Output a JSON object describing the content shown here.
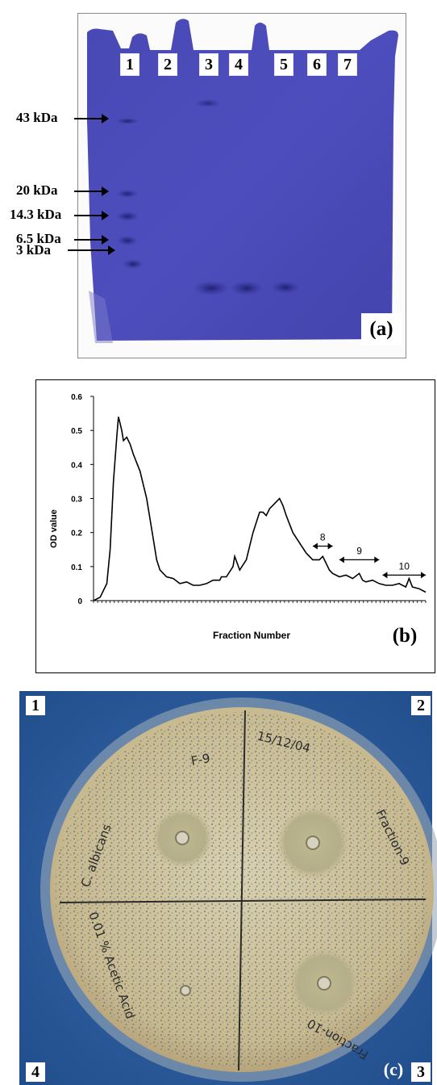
{
  "panel_a": {
    "letter": "(a)",
    "lanes": [
      "1",
      "2",
      "3",
      "4",
      "5",
      "6",
      "7"
    ],
    "markers": [
      "43 kDa",
      "20 kDa",
      "14.3 kDa",
      "6.5 kDa",
      "3 kDa"
    ],
    "colors": {
      "gel": "#4a4ab8",
      "gel_dark": "#2a2a8a",
      "band": "#1e1e6e"
    }
  },
  "panel_b": {
    "letter": "(b)",
    "annotations": [
      "8",
      "9",
      "10"
    ]
  },
  "chart_data": {
    "type": "line",
    "title": "",
    "xlabel": "Fraction Number",
    "ylabel": "OD value",
    "yticks": [
      "0",
      "0.1",
      "0.2",
      "0.3",
      "0.4",
      "0.5",
      "0.6"
    ],
    "ylim": [
      0,
      0.6
    ],
    "xlim": [
      0,
      100
    ],
    "grid": false,
    "series": [
      {
        "x": [
          0,
          2,
          4,
          5,
          6,
          7,
          7.5,
          8,
          8.5,
          9,
          10,
          11,
          12,
          14,
          16,
          18,
          19,
          20,
          21,
          22,
          24,
          26,
          28,
          30,
          32,
          34,
          36,
          38,
          38.5,
          40,
          42,
          42.5,
          44,
          46,
          48,
          50,
          51,
          52,
          53,
          54,
          55,
          56,
          57,
          58,
          60,
          62,
          64,
          66,
          68,
          69,
          70,
          71,
          72,
          74,
          76,
          78,
          80,
          81,
          82,
          84,
          86,
          88,
          90,
          92,
          94,
          95,
          96,
          98,
          100
        ],
        "y": [
          0,
          0.01,
          0.05,
          0.15,
          0.35,
          0.48,
          0.54,
          0.52,
          0.5,
          0.47,
          0.48,
          0.46,
          0.43,
          0.38,
          0.3,
          0.18,
          0.12,
          0.09,
          0.08,
          0.07,
          0.065,
          0.05,
          0.055,
          0.045,
          0.045,
          0.05,
          0.06,
          0.06,
          0.07,
          0.07,
          0.1,
          0.13,
          0.09,
          0.12,
          0.2,
          0.26,
          0.26,
          0.25,
          0.27,
          0.28,
          0.29,
          0.3,
          0.28,
          0.25,
          0.2,
          0.17,
          0.14,
          0.12,
          0.12,
          0.13,
          0.11,
          0.09,
          0.08,
          0.07,
          0.075,
          0.065,
          0.08,
          0.06,
          0.055,
          0.06,
          0.05,
          0.045,
          0.045,
          0.05,
          0.04,
          0.065,
          0.04,
          0.035,
          0.025
        ]
      }
    ],
    "ranges": [
      {
        "label": "8",
        "x": [
          66,
          72
        ]
      },
      {
        "label": "9",
        "x": [
          74,
          86
        ]
      },
      {
        "label": "10",
        "x": [
          87,
          100
        ]
      }
    ]
  },
  "panel_c": {
    "letter": "(c)",
    "corners": [
      "1",
      "2",
      "3",
      "4"
    ],
    "plate_labels": [
      "F-9",
      "15/12/04",
      "Fraction-9",
      "C. albicans",
      "0.01 % Acetic Acid",
      "Fraction-10"
    ],
    "colors": {
      "background": "#2d5ea0",
      "agar": "#cfc39a",
      "colony": "#6a7c88"
    }
  }
}
